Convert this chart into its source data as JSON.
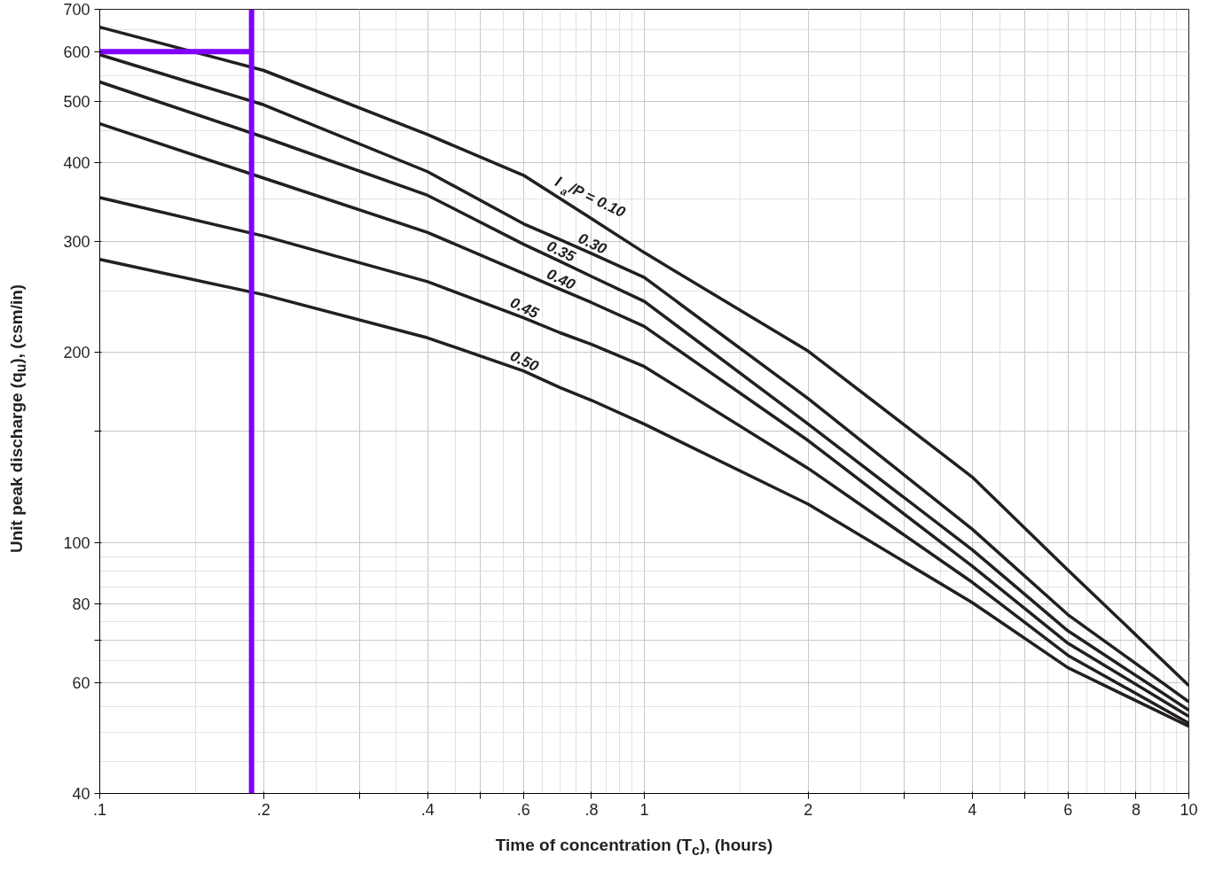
{
  "chart_data": {
    "type": "line",
    "xlabel": "Time of concentration (T$_{c}$), (hours)",
    "ylabel": "Unit peak discharge (q$_{u}$), (csm/in)",
    "x": [
      0.1,
      0.2,
      0.4,
      0.6,
      0.7,
      0.8,
      1,
      2,
      4,
      6,
      10
    ],
    "series": [
      {
        "color": "#231f20",
        "values": [
          656,
          560,
          443,
          382,
          351,
          326,
          288,
          201,
          127,
          90.4,
          59.3
        ]
      },
      {
        "color": "#231f20",
        "values": [
          593,
          494,
          387,
          320,
          302,
          287,
          263,
          169,
          105,
          76.8,
          55.9
        ]
      },
      {
        "color": "#231f20",
        "values": [
          537,
          439,
          355,
          297,
          279,
          264,
          241,
          154,
          97.4,
          72.4,
          54.2
        ]
      },
      {
        "color": "#231f20",
        "values": [
          461,
          378,
          310,
          267,
          252,
          240,
          220,
          145,
          91.7,
          69.2,
          53
        ]
      },
      {
        "color": "#231f20",
        "values": [
          352,
          306,
          259,
          227,
          215,
          206,
          190,
          131,
          86.5,
          66.2,
          51.7
        ]
      },
      {
        "color": "#231f20",
        "values": [
          281,
          247,
          211,
          187,
          176,
          168,
          154,
          115,
          80.3,
          63.3,
          51.1
        ]
      },
      {
        "color": "#7f00ff",
        "x": [
          0.1,
          0.19
        ],
        "values": [
          600,
          600
        ]
      }
    ],
    "ref_lines": [
      {
        "axis": "x",
        "value": 0.19,
        "color": "#7f00ff"
      }
    ],
    "annotations": [
      {
        "text": "I$_{a}$/P = 0.10",
        "x": 0.8,
        "y": 326
      },
      {
        "text": "0.30",
        "x": 0.8,
        "y": 287
      },
      {
        "text": "0.35",
        "x": 0.7,
        "y": 279
      },
      {
        "text": "0.40",
        "x": 0.7,
        "y": 252
      },
      {
        "text": "0.45",
        "x": 0.6,
        "y": 227
      },
      {
        "text": "0.50",
        "x": 0.6,
        "y": 187
      }
    ],
    "log": "xy",
    "xlim": [
      0.1,
      10
    ],
    "ylim": [
      40,
      700
    ],
    "xticks": [
      {
        "value": 0.1,
        "label": ".1"
      },
      {
        "value": 0.2,
        "label": ".2"
      },
      {
        "value": 0.3,
        "label": null
      },
      {
        "value": 0.4,
        "label": ".4"
      },
      {
        "value": 0.5,
        "label": null
      },
      {
        "value": 0.6,
        "label": ".6"
      },
      {
        "value": 0.8,
        "label": ".8"
      },
      1,
      2,
      {
        "value": 3,
        "label": null
      },
      4,
      {
        "value": 5,
        "label": null
      },
      6,
      8,
      10
    ],
    "yticks": [
      40,
      60,
      {
        "value": 70,
        "label": null
      },
      80,
      100,
      {
        "value": 150,
        "label": null
      },
      200,
      300,
      400,
      500,
      600,
      700
    ],
    "grid": true,
    "marker": "none",
    "line_style": "solid"
  }
}
